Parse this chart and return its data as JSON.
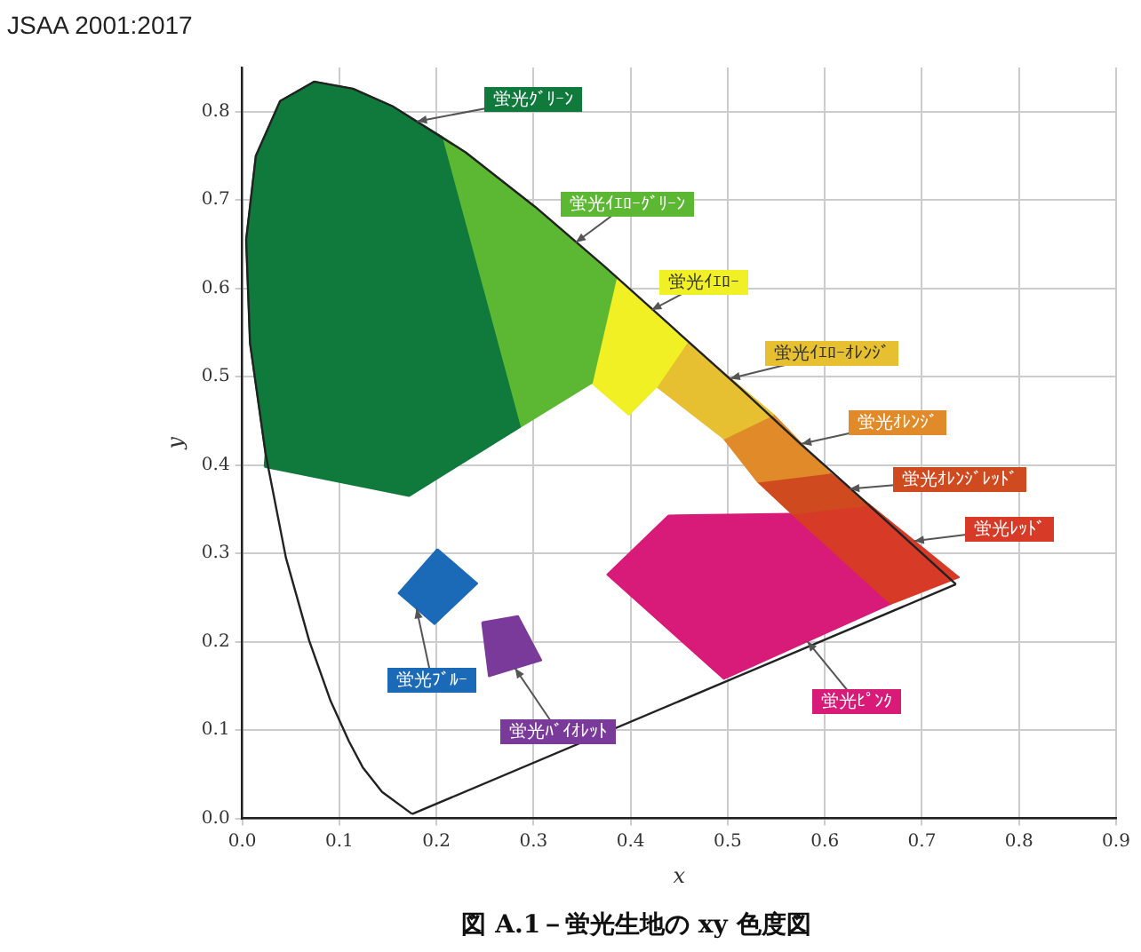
{
  "chart_data": {
    "type": "line",
    "title": "図 A.1－蛍光生地の xy 色度図",
    "xlabel": "x",
    "ylabel": "y",
    "annotations": [
      "JSAA 2001:2017"
    ],
    "xlim": [
      0,
      0.9
    ],
    "ylim": [
      0,
      0.85
    ],
    "xticks": [
      {
        "value": 0,
        "label": "0.0"
      },
      {
        "value": 0.1,
        "label": "0.1"
      },
      {
        "value": 0.2,
        "label": "0.2"
      },
      {
        "value": 0.3,
        "label": "0.3"
      },
      {
        "value": 0.4,
        "label": "0.4"
      },
      {
        "value": 0.5,
        "label": "0.5"
      },
      {
        "value": 0.6,
        "label": "0.6"
      },
      {
        "value": 0.7,
        "label": "0.7"
      },
      {
        "value": 0.8,
        "label": "0.8"
      },
      {
        "value": 0.9,
        "label": "0.9"
      }
    ],
    "yticks": [
      {
        "value": 0,
        "label": "0.0"
      },
      {
        "value": 0.1,
        "label": "0.1"
      },
      {
        "value": 0.2,
        "label": "0.2"
      },
      {
        "value": 0.3,
        "label": "0.3"
      },
      {
        "value": 0.4,
        "label": "0.4"
      },
      {
        "value": 0.5,
        "label": "0.5"
      },
      {
        "value": 0.6,
        "label": "0.6"
      },
      {
        "value": 0.7,
        "label": "0.7"
      },
      {
        "value": 0.8,
        "label": "0.8"
      }
    ],
    "grid": true,
    "legend": false,
    "series": [
      {
        "type": "line",
        "color": "#222222",
        "x": [
          0.175,
          0.144,
          0.124,
          0.11,
          0.091,
          0.069,
          0.045,
          0.024,
          0.008,
          0.004,
          0.014,
          0.039,
          0.074,
          0.114,
          0.155,
          0.23,
          0.302,
          0.373,
          0.444,
          0.513,
          0.575,
          0.627,
          0.692,
          0.735
        ],
        "values": [
          0.005,
          0.03,
          0.058,
          0.087,
          0.133,
          0.201,
          0.295,
          0.413,
          0.538,
          0.655,
          0.75,
          0.812,
          0.834,
          0.826,
          0.806,
          0.754,
          0.692,
          0.625,
          0.555,
          0.487,
          0.424,
          0.373,
          0.308,
          0.265
        ]
      },
      {
        "type": "line",
        "color": "#222222",
        "x": [
          0.175,
          0.735
        ],
        "values": [
          0.005,
          0.265
        ]
      },
      {
        "type": "area",
        "name": "蛍光ｸﾞﾘｰﾝ",
        "color": "#0f7a3c",
        "x": [
          0.023,
          0.172,
          0.286,
          0.205,
          0.155,
          0.114,
          0.074,
          0.039,
          0.014,
          0.004,
          0.008,
          0.024
        ],
        "values": [
          0.398,
          0.365,
          0.443,
          0.772,
          0.806,
          0.826,
          0.834,
          0.812,
          0.75,
          0.655,
          0.538,
          0.413
        ]
      },
      {
        "type": "area",
        "name": "蛍光ｲｴﾛｰｸﾞﾘｰﾝ",
        "color": "#5cb832",
        "x": [
          0.205,
          0.23,
          0.302,
          0.385,
          0.36,
          0.286
        ],
        "values": [
          0.772,
          0.754,
          0.692,
          0.612,
          0.493,
          0.443
        ]
      },
      {
        "type": "area",
        "name": "蛍光ｲｴﾛｰ",
        "color": "#f0f024",
        "x": [
          0.385,
          0.458,
          0.427,
          0.398,
          0.36
        ],
        "values": [
          0.612,
          0.539,
          0.489,
          0.457,
          0.493
        ]
      },
      {
        "type": "area",
        "name": "蛍光ｲｴﾛｰｵﾚﾝｼﾞ",
        "color": "#e6c030",
        "x": [
          0.458,
          0.547,
          0.496,
          0.427
        ],
        "values": [
          0.539,
          0.457,
          0.43,
          0.489
        ]
      },
      {
        "type": "area",
        "name": "蛍光ｵﾚﾝｼﾞ",
        "color": "#e08a2a",
        "x": [
          0.547,
          0.605,
          0.531,
          0.496
        ],
        "values": [
          0.457,
          0.391,
          0.381,
          0.43
        ]
      },
      {
        "type": "area",
        "name": "蛍光ｵﾚﾝｼﾞﾚｯﾄﾞ",
        "color": "#d04a20",
        "x": [
          0.531,
          0.605,
          0.646,
          0.566
        ],
        "values": [
          0.381,
          0.391,
          0.355,
          0.345
        ]
      },
      {
        "type": "area",
        "name": "蛍光ﾚｯﾄﾞ",
        "color": "#d83a28",
        "x": [
          0.566,
          0.646,
          0.738,
          0.668
        ],
        "values": [
          0.345,
          0.355,
          0.273,
          0.243
        ]
      },
      {
        "type": "area",
        "name": "蛍光ﾋﾟﾝｸ",
        "color": "#d81a78",
        "x": [
          0.439,
          0.566,
          0.668,
          0.496,
          0.376
        ],
        "values": [
          0.343,
          0.345,
          0.243,
          0.158,
          0.276
        ]
      },
      {
        "type": "area",
        "name": "蛍光ﾌﾞﾙｰ",
        "color": "#1a6ab8",
        "x": [
          0.201,
          0.242,
          0.198,
          0.161
        ],
        "values": [
          0.305,
          0.266,
          0.22,
          0.255
        ]
      },
      {
        "type": "area",
        "name": "蛍光ﾊﾞｲｵﾚｯﾄ",
        "color": "#7a3a9a",
        "x": [
          0.247,
          0.284,
          0.308,
          0.254
        ],
        "values": [
          0.222,
          0.229,
          0.179,
          0.161
        ]
      }
    ]
  }
}
